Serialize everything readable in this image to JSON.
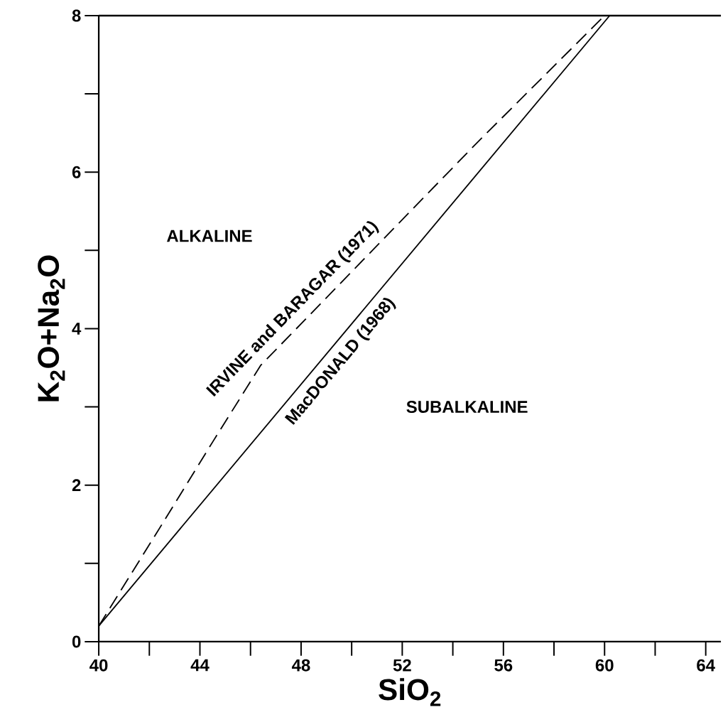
{
  "chart_data": {
    "type": "line",
    "xlabel": "SiO$_{2}$",
    "ylabel": "K$_{2}$O+Na$_{2}$O",
    "xlim": [
      40,
      64.6
    ],
    "ylim": [
      0,
      8
    ],
    "xticks": [
      40,
      44,
      48,
      52,
      56,
      60,
      64
    ],
    "yticks": [
      0,
      2,
      4,
      6,
      8
    ],
    "series": [
      {
        "name": "IRVINE and BARAGAR (1971)",
        "color": "#000000",
        "line_style": "dashed",
        "x": [
          40,
          42.5,
          44.5,
          46.4,
          55,
          60
        ],
        "values": [
          0.2,
          1.5,
          2.55,
          3.53,
          6.39,
          8
        ]
      },
      {
        "name": "MacDONALD (1968)",
        "color": "#000000",
        "line_style": "solid",
        "x": [
          40,
          60.2
        ],
        "values": [
          0.2,
          8
        ]
      }
    ],
    "annotations": [
      "ALKALINE",
      "SUBALKALINE"
    ]
  }
}
